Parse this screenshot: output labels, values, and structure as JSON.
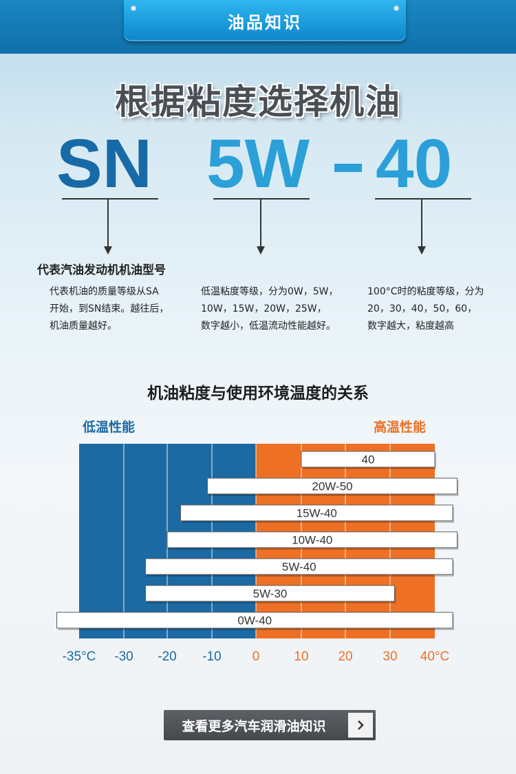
{
  "header": {
    "tab_label": "油品知识"
  },
  "title": "根据粘度选择机油",
  "code": {
    "part1": "SN",
    "part2": "5W",
    "part3": "40"
  },
  "sub_heading": "代表汽油发动机机油型号",
  "descriptions": [
    [
      "代表机油的质量等级从SA",
      "开始，到SN结束。越往后，",
      "机油质量越好。"
    ],
    [
      "低温粘度等级，分为0W，5W，",
      "10W，15W，20W，25W，",
      "数字越小，低温流动性能越好。"
    ],
    [
      "100°C时的粘度等级，分为",
      "20，30，40，50，60，",
      "数字越大，粘度越高"
    ]
  ],
  "chart_title": "机油粘度与使用环境温度的关系",
  "colors": {
    "low": "#1c6aa3",
    "high": "#ee7024",
    "accent": "#2ba0d8"
  },
  "chart_data": {
    "type": "bar",
    "orientation": "horizontal-range",
    "title": "机油粘度与使用环境温度的关系",
    "low_label": "低温性能",
    "high_label": "高温性能",
    "x_ticks": [
      "-35°C",
      "-30",
      "-20",
      "-10",
      "0",
      "10",
      "20",
      "30",
      "40°C"
    ],
    "x_tick_values": [
      -35,
      -30,
      -20,
      -10,
      0,
      10,
      20,
      30,
      40
    ],
    "xlim": [
      -35,
      40
    ],
    "grid": true,
    "series": [
      {
        "grade": "40",
        "min": 10,
        "max": 40
      },
      {
        "grade": "20W-50",
        "min": -11,
        "max": 45
      },
      {
        "grade": "15W-40",
        "min": -17,
        "max": 44
      },
      {
        "grade": "10W-40",
        "min": -20,
        "max": 45
      },
      {
        "grade": "5W-40",
        "min": -25,
        "max": 44
      },
      {
        "grade": "5W-30",
        "min": -25,
        "max": 31
      },
      {
        "grade": "0W-40",
        "min": -40,
        "max": 44
      }
    ]
  },
  "cta": {
    "label": "查看更多汽车润滑油知识"
  }
}
